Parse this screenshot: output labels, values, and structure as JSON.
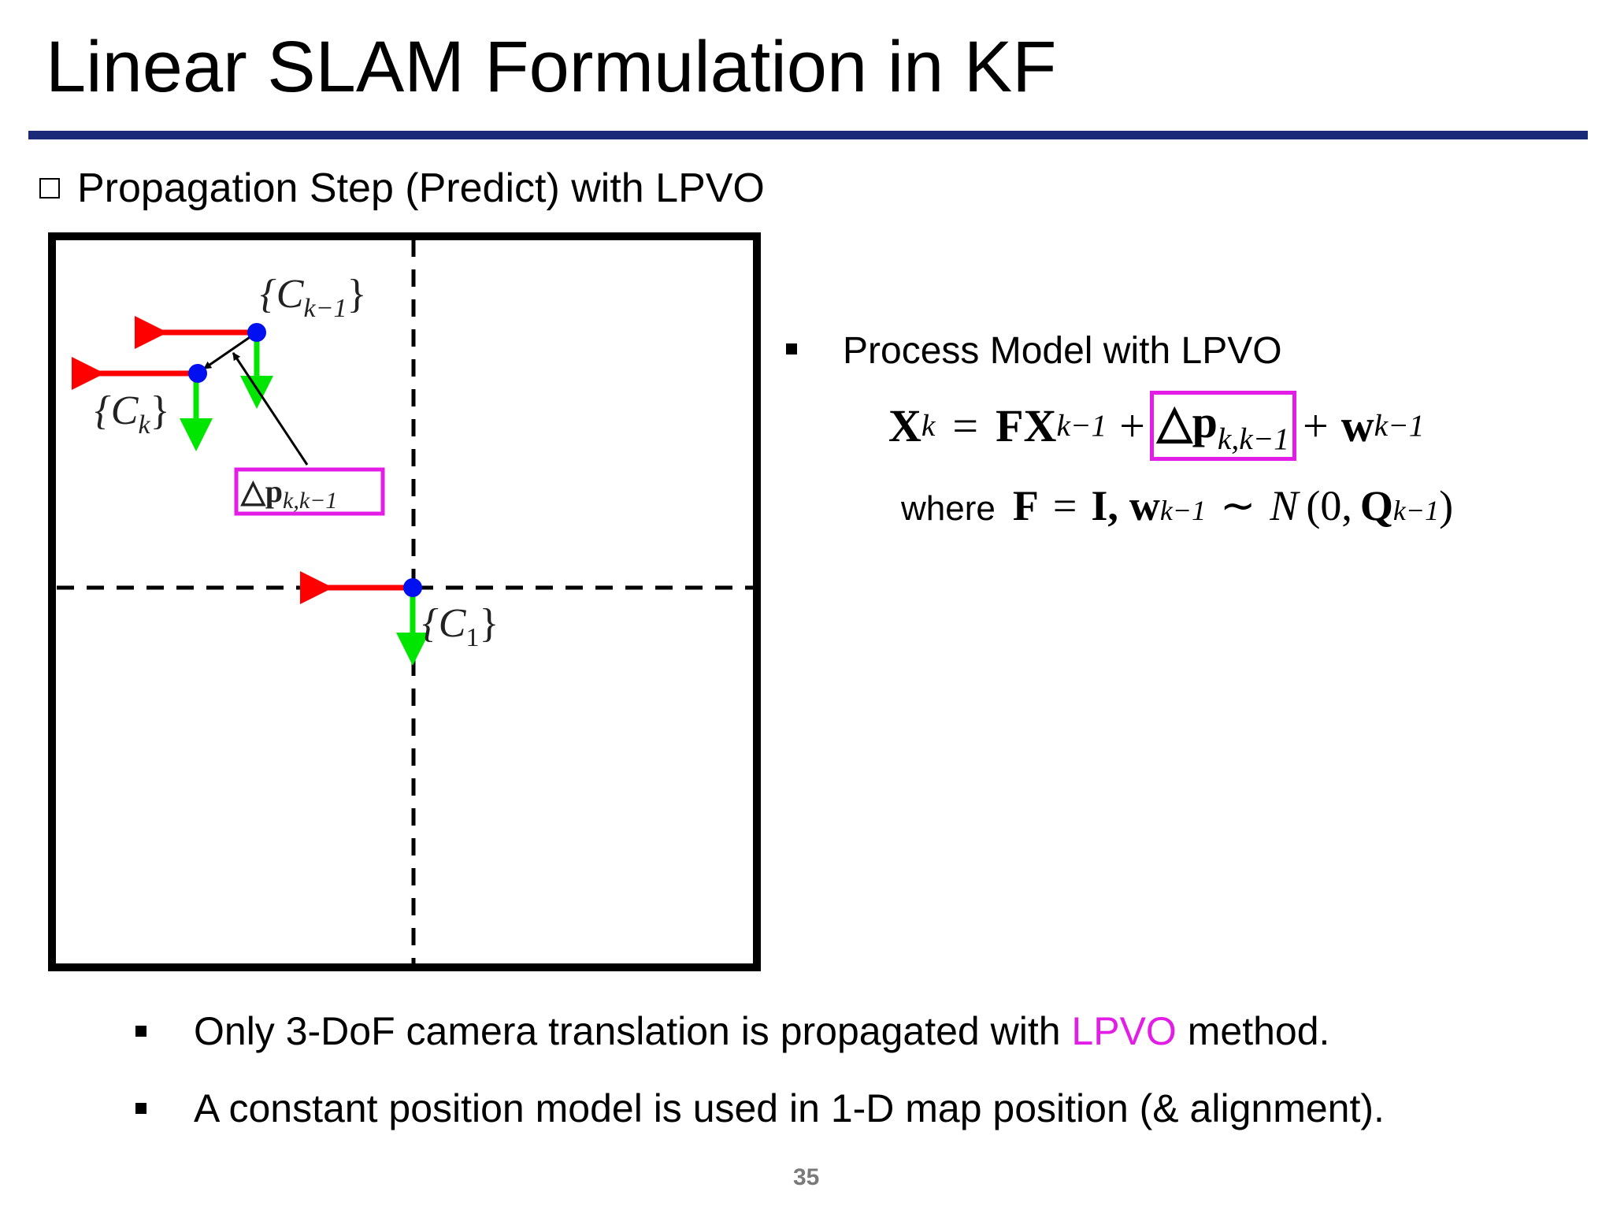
{
  "slide": {
    "title": "Linear SLAM Formulation in KF",
    "section": "Propagation Step (Predict) with LPVO",
    "page_number": "35"
  },
  "diagram": {
    "labels": {
      "c_k_minus_1": "{C",
      "c_k_minus_1_sub": "k−1",
      "c_k": "{C",
      "c_k_sub": "k",
      "c_1": "{C",
      "c_1_sub": "1",
      "close_brace": "}",
      "delta_p": "△p",
      "delta_p_sub": "k,k−1"
    },
    "colors": {
      "red_axis": "#ff0000",
      "green_axis": "#00e600",
      "camera_point": "#0010f0",
      "highlight_box": "#e21ee6",
      "frame": "#000000"
    }
  },
  "process_model": {
    "heading": "Process Model with LPVO",
    "eq_lhs": "X",
    "eq_lhs_sub": "k",
    "eq_equals": "=",
    "eq_f": "FX",
    "eq_f_sub": "k−1",
    "eq_plus1": "+",
    "eq_delta": "△p",
    "eq_delta_sub": "k,k−1",
    "eq_plus2": "+",
    "eq_w": "w",
    "eq_w_sub": "k−1",
    "where_label": "where",
    "where_f": "F",
    "where_eq": "=",
    "where_i": "I,",
    "where_w": "w",
    "where_w_sub": "k−1",
    "where_sim": "∼",
    "where_n": "N",
    "where_open": "(0,",
    "where_q": "Q",
    "where_q_sub": "k−1",
    "where_close": ")"
  },
  "bullets": {
    "item1_before": "Only 3-DoF camera translation is propagated with",
    "item1_highlight": "LPVO",
    "item1_after": "method.",
    "item1_highlight_color": "#e21ee6",
    "item2": "A constant position model is used in 1-D map position (& alignment)."
  }
}
